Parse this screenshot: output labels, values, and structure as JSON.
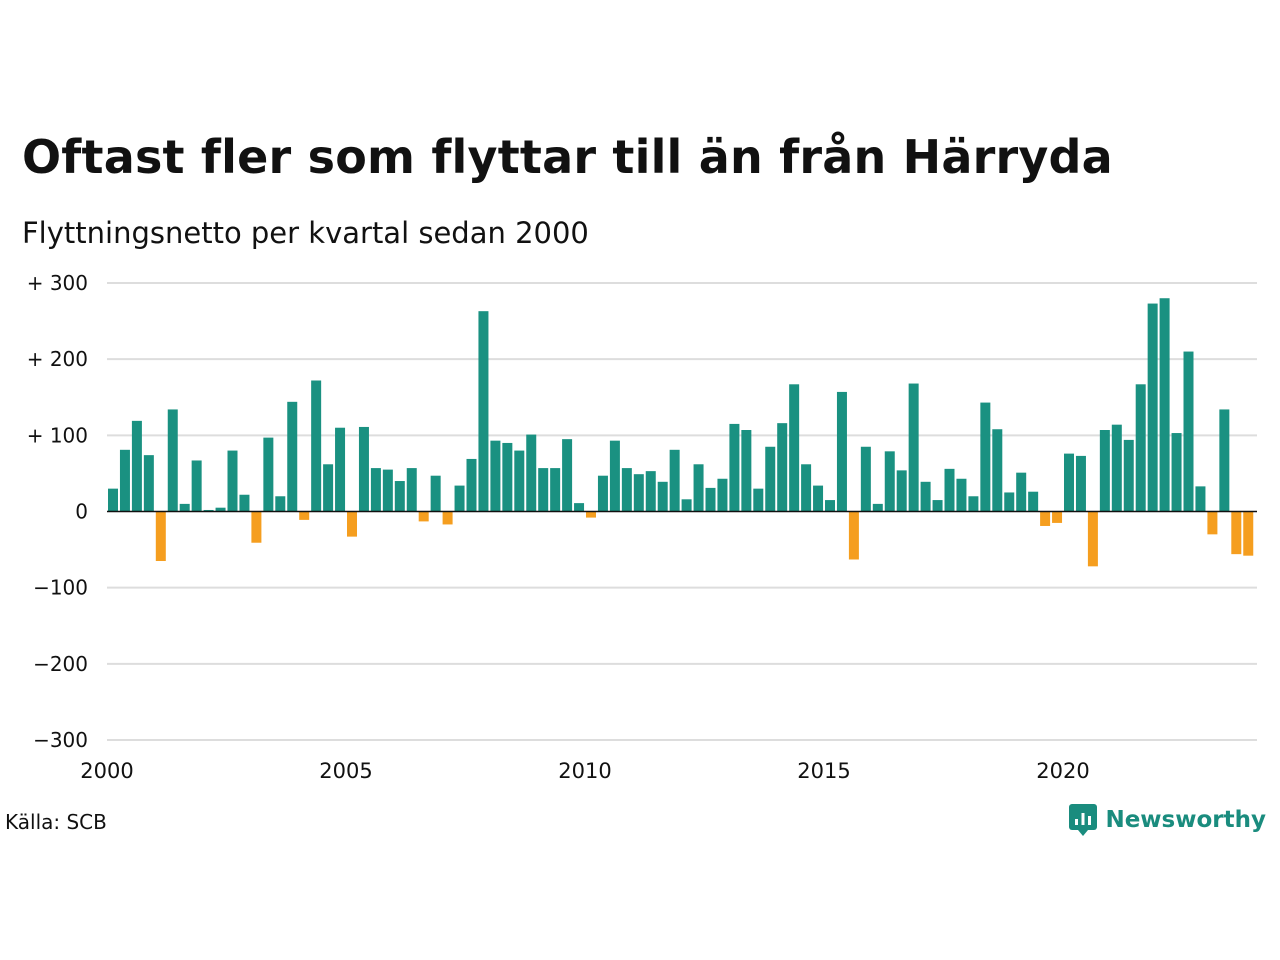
{
  "header": {
    "title": "Oftast fler som flyttar till än från Härryda",
    "subtitle": "Flyttningsnetto per kvartal sedan 2000"
  },
  "footer": {
    "source": "Källa: SCB",
    "brand": "Newsworthy"
  },
  "colors": {
    "positive": "#1a9181",
    "negative": "#f59e1f",
    "grid": "#dddddd",
    "zero_line": "#111111",
    "brand": "#1a8c7e"
  },
  "chart_data": {
    "type": "bar",
    "x_unit": "quarter",
    "x_start": "2000-Q1",
    "values": [
      30,
      81,
      119,
      74,
      -65,
      134,
      10,
      67,
      2,
      5,
      80,
      22,
      -41,
      97,
      20,
      144,
      -11,
      172,
      62,
      110,
      -33,
      111,
      57,
      55,
      40,
      57,
      -13,
      47,
      -17,
      34,
      69,
      263,
      93,
      90,
      80,
      101,
      57,
      57,
      95,
      11,
      -8,
      47,
      93,
      57,
      49,
      53,
      39,
      81,
      16,
      62,
      31,
      43,
      115,
      107,
      30,
      85,
      116,
      167,
      62,
      34,
      15,
      157,
      -63,
      85,
      10,
      79,
      54,
      168,
      39,
      15,
      56,
      43,
      20,
      143,
      108,
      25,
      51,
      26,
      -19,
      -15,
      76,
      73,
      -72,
      107,
      114,
      94,
      167,
      273,
      280,
      103,
      210,
      33,
      -30,
      134,
      -56,
      -58
    ],
    "xticks": [
      {
        "value": 2000,
        "label": "2000"
      },
      {
        "value": 2005,
        "label": "2005"
      },
      {
        "value": 2010,
        "label": "2010"
      },
      {
        "value": 2015,
        "label": "2015"
      },
      {
        "value": 2020,
        "label": "2020"
      }
    ],
    "yticks": [
      {
        "value": 300,
        "label": "+ 300"
      },
      {
        "value": 200,
        "label": "+ 200"
      },
      {
        "value": 100,
        "label": "+ 100"
      },
      {
        "value": 0,
        "label": "0"
      },
      {
        "value": -100,
        "label": "−100"
      },
      {
        "value": -200,
        "label": "−200"
      },
      {
        "value": -300,
        "label": "−300"
      }
    ],
    "ylim": [
      -300,
      300
    ],
    "grid": true
  }
}
